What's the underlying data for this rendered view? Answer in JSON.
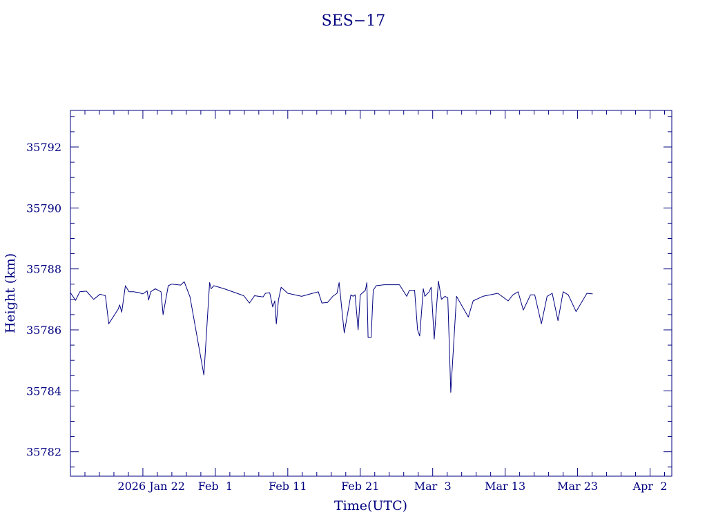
{
  "chart_data": {
    "type": "line",
    "title": "SES−17",
    "xlabel": "Time(UTC)",
    "ylabel": "Height (km)",
    "color": "#000080",
    "xlim": [
      "2026-01-12",
      "2026-04-05"
    ],
    "ylim": [
      35781.2,
      35793.2
    ],
    "x_ticks": [
      {
        "date": "2026-01-22",
        "label": "2026 Jan 22"
      },
      {
        "date": "2026-02-01",
        "label": "Feb  1"
      },
      {
        "date": "2026-02-11",
        "label": "Feb 11"
      },
      {
        "date": "2026-02-21",
        "label": "Feb 21"
      },
      {
        "date": "2026-03-03",
        "label": "Mar  3"
      },
      {
        "date": "2026-03-13",
        "label": "Mar 13"
      },
      {
        "date": "2026-03-23",
        "label": "Mar 23"
      },
      {
        "date": "2026-04-02",
        "label": "Apr  2"
      }
    ],
    "y_ticks": [
      {
        "value": 35782,
        "label": "35782"
      },
      {
        "value": 35784,
        "label": "35784"
      },
      {
        "value": 35786,
        "label": "35786"
      },
      {
        "value": 35788,
        "label": "35788"
      },
      {
        "value": 35790,
        "label": "35790"
      },
      {
        "value": 35792,
        "label": "35792"
      }
    ],
    "series": [
      {
        "points": [
          [
            "2026-01-12T00:00",
            35787.22
          ],
          [
            "2026-01-12T17:00",
            35786.97
          ],
          [
            "2026-01-13T07:00",
            35787.25
          ],
          [
            "2026-01-14T05:00",
            35787.27
          ],
          [
            "2026-01-15T05:00",
            35787.0
          ],
          [
            "2026-01-16T02:00",
            35787.17
          ],
          [
            "2026-01-16T20:00",
            35787.12
          ],
          [
            "2026-01-17T07:00",
            35786.2
          ],
          [
            "2026-01-18T14:00",
            35786.68
          ],
          [
            "2026-01-18T19:00",
            35786.82
          ],
          [
            "2026-01-19T02:00",
            35786.58
          ],
          [
            "2026-01-19T14:00",
            35787.45
          ],
          [
            "2026-01-20T02:00",
            35787.25
          ],
          [
            "2026-01-20T17:00",
            35787.25
          ],
          [
            "2026-01-21T12:00",
            35787.22
          ],
          [
            "2026-01-22T00:00",
            35787.18
          ],
          [
            "2026-01-22T14:00",
            35787.28
          ],
          [
            "2026-01-22T19:00",
            35786.98
          ],
          [
            "2026-01-23T02:00",
            35787.25
          ],
          [
            "2026-01-23T17:00",
            35787.35
          ],
          [
            "2026-01-24T12:00",
            35787.25
          ],
          [
            "2026-01-24T19:00",
            35786.5
          ],
          [
            "2026-01-25T12:00",
            35787.45
          ],
          [
            "2026-01-26T00:00",
            35787.5
          ],
          [
            "2026-01-27T05:00",
            35787.47
          ],
          [
            "2026-01-27T17:00",
            35787.58
          ],
          [
            "2026-01-28T12:00",
            35787.08
          ],
          [
            "2026-01-30T10:00",
            35784.52
          ],
          [
            "2026-01-31T05:00",
            35787.55
          ],
          [
            "2026-01-31T10:00",
            35787.35
          ],
          [
            "2026-01-31T19:00",
            35787.45
          ],
          [
            "2026-02-02T05:00",
            35787.35
          ],
          [
            "2026-02-04T22:00",
            35787.12
          ],
          [
            "2026-02-05T17:00",
            35786.88
          ],
          [
            "2026-02-06T10:00",
            35787.12
          ],
          [
            "2026-02-07T14:00",
            35787.08
          ],
          [
            "2026-02-07T22:00",
            35787.2
          ],
          [
            "2026-02-08T12:00",
            35787.22
          ],
          [
            "2026-02-08T22:00",
            35786.75
          ],
          [
            "2026-02-09T05:00",
            35786.95
          ],
          [
            "2026-02-09T10:00",
            35786.2
          ],
          [
            "2026-02-09T17:00",
            35786.98
          ],
          [
            "2026-02-10T02:00",
            35787.4
          ],
          [
            "2026-02-11T00:00",
            35787.2
          ],
          [
            "2026-02-12T22:00",
            35787.1
          ],
          [
            "2026-02-14T10:00",
            35787.2
          ],
          [
            "2026-02-15T05:00",
            35787.25
          ],
          [
            "2026-02-15T17:00",
            35786.88
          ],
          [
            "2026-02-16T12:00",
            35786.9
          ],
          [
            "2026-02-17T05:00",
            35787.1
          ],
          [
            "2026-02-17T19:00",
            35787.2
          ],
          [
            "2026-02-18T02:00",
            35787.55
          ],
          [
            "2026-02-18T19:00",
            35785.9
          ],
          [
            "2026-02-19T17:00",
            35787.15
          ],
          [
            "2026-02-20T00:00",
            35787.1
          ],
          [
            "2026-02-20T07:00",
            35787.15
          ],
          [
            "2026-02-20T17:00",
            35786.0
          ],
          [
            "2026-02-21T00:00",
            35787.15
          ],
          [
            "2026-02-21T17:00",
            35787.3
          ],
          [
            "2026-02-21T22:00",
            35787.55
          ],
          [
            "2026-02-22T02:00",
            35785.75
          ],
          [
            "2026-02-22T12:00",
            35785.75
          ],
          [
            "2026-02-22T19:00",
            35787.3
          ],
          [
            "2026-02-23T05:00",
            35787.45
          ],
          [
            "2026-02-24T07:00",
            35787.48
          ],
          [
            "2026-02-26T10:00",
            35787.48
          ],
          [
            "2026-02-27T10:00",
            35787.1
          ],
          [
            "2026-02-27T19:00",
            35787.3
          ],
          [
            "2026-02-28T12:00",
            35787.3
          ],
          [
            "2026-02-28T22:00",
            35786.0
          ],
          [
            "2026-03-01T05:00",
            35785.8
          ],
          [
            "2026-03-01T17:00",
            35787.35
          ],
          [
            "2026-03-01T22:00",
            35787.1
          ],
          [
            "2026-03-02T12:00",
            35787.25
          ],
          [
            "2026-03-02T19:00",
            35787.4
          ],
          [
            "2026-03-03T05:00",
            35785.7
          ],
          [
            "2026-03-03T19:00",
            35787.6
          ],
          [
            "2026-03-04T05:00",
            35787.0
          ],
          [
            "2026-03-04T17:00",
            35787.1
          ],
          [
            "2026-03-05T02:00",
            35787.05
          ],
          [
            "2026-03-05T12:00",
            35783.95
          ],
          [
            "2026-03-06T07:00",
            35787.1
          ],
          [
            "2026-03-07T22:00",
            35786.42
          ],
          [
            "2026-03-08T14:00",
            35786.95
          ],
          [
            "2026-03-09T22:00",
            35787.1
          ],
          [
            "2026-03-12T00:00",
            35787.2
          ],
          [
            "2026-03-13T10:00",
            35786.95
          ],
          [
            "2026-03-14T02:00",
            35787.15
          ],
          [
            "2026-03-14T19:00",
            35787.25
          ],
          [
            "2026-03-15T12:00",
            35786.65
          ],
          [
            "2026-03-16T12:00",
            35787.15
          ],
          [
            "2026-03-17T02:00",
            35787.15
          ],
          [
            "2026-03-18T00:00",
            35786.2
          ],
          [
            "2026-03-18T19:00",
            35787.1
          ],
          [
            "2026-03-19T12:00",
            35787.2
          ],
          [
            "2026-03-20T07:00",
            35786.3
          ],
          [
            "2026-03-21T00:00",
            35787.25
          ],
          [
            "2026-03-21T17:00",
            35787.15
          ],
          [
            "2026-03-22T19:00",
            35786.6
          ],
          [
            "2026-03-24T07:00",
            35787.2
          ],
          [
            "2026-03-25T02:00",
            35787.18
          ]
        ]
      }
    ]
  }
}
